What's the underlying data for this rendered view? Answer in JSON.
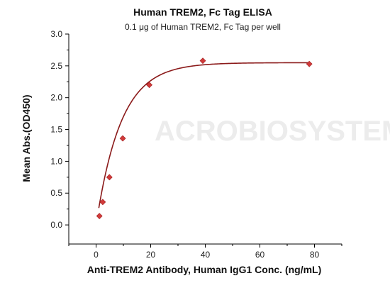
{
  "chart_data": {
    "type": "scatter",
    "title": "Human TREM2, Fc Tag ELISA",
    "subtitle": "0.1 μg of Human TREM2, Fc Tag per well",
    "xlabel": "Anti-TREM2 Antibody, Human IgG1 Conc. (ng/mL)",
    "ylabel": "Mean Abs.(OD450)",
    "xlim": [
      -10,
      90
    ],
    "ylim": [
      -0.3,
      3.0
    ],
    "xticks": [
      0,
      20,
      40,
      60,
      80
    ],
    "yticks": [
      0.0,
      0.5,
      1.0,
      1.5,
      2.0,
      2.5,
      3.0
    ],
    "xtick_labels": [
      "0",
      "20",
      "40",
      "60",
      "80"
    ],
    "ytick_labels": [
      "0.0",
      "0.5",
      "1.0",
      "1.5",
      "2.0",
      "2.5",
      "3.0"
    ],
    "grid": false,
    "legend": false,
    "watermark": "ACROBIOSYSTEMS",
    "series": [
      {
        "x": [
          1.22,
          2.44,
          4.88,
          9.77,
          19.5,
          39.1,
          78.1
        ],
        "y": [
          0.14,
          0.36,
          0.75,
          1.36,
          2.2,
          2.58,
          2.53
        ],
        "marker": "diamond",
        "color": "#d13a3a"
      }
    ],
    "fit_curve": {
      "color": "#8b1a1a",
      "x_range": [
        1.0,
        78.1
      ],
      "y_min": 0.0,
      "y_max": 2.55,
      "rate": 0.11
    }
  }
}
